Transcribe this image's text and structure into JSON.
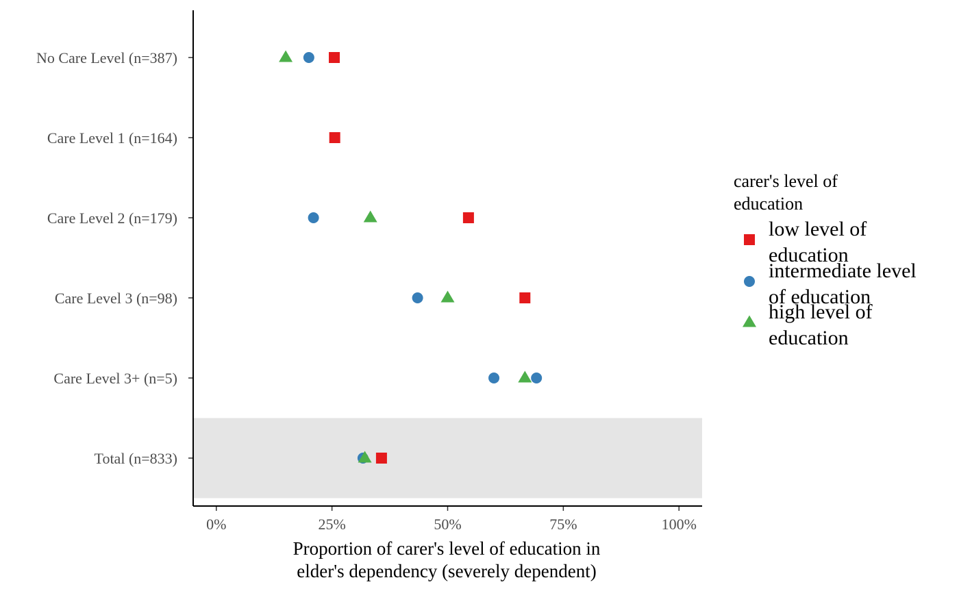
{
  "chart_data": {
    "type": "scatter",
    "title": "",
    "xlabel_lines": [
      "Proportion of carer's level of education in",
      "elder's dependency (severely dependent)"
    ],
    "ylabel": "",
    "xlim": [
      -0.05,
      1.05
    ],
    "x_ticks": [
      0,
      0.25,
      0.5,
      0.75,
      1.0
    ],
    "x_tick_labels": [
      "0%",
      "25%",
      "50%",
      "75%",
      "100%"
    ],
    "categories": [
      "No Care Level (n=387)",
      "Care Level 1 (n=164)",
      "Care Level 2 (n=179)",
      "Care Level 3 (n=98)",
      "Care Level 3+ (n=5)",
      "Total (n=833)"
    ],
    "highlighted_category": "Total (n=833)",
    "highlight_color": "#e5e5e5",
    "grid": false,
    "legend_position": "right",
    "legend_title_lines": [
      "carer's level of",
      "education"
    ],
    "series": [
      {
        "name": "low level of education",
        "legend_lines": [
          "low level of",
          "education"
        ],
        "shape": "square",
        "color": "#e41a1c",
        "values": [
          0.255,
          0.256,
          0.545,
          0.667,
          null,
          0.357
        ]
      },
      {
        "name": "intermediate level of education",
        "legend_lines": [
          "intermediate level",
          "of education"
        ],
        "shape": "circle",
        "color": "#377eb8",
        "values": [
          0.2,
          null,
          0.21,
          0.435,
          [
            0.6,
            0.692
          ],
          0.317
        ]
      },
      {
        "name": "high level of education",
        "legend_lines": [
          "high level of",
          "education"
        ],
        "shape": "triangle",
        "color": "#4daf4a",
        "values": [
          0.15,
          null,
          0.333,
          0.5,
          0.667,
          0.321
        ]
      }
    ]
  }
}
